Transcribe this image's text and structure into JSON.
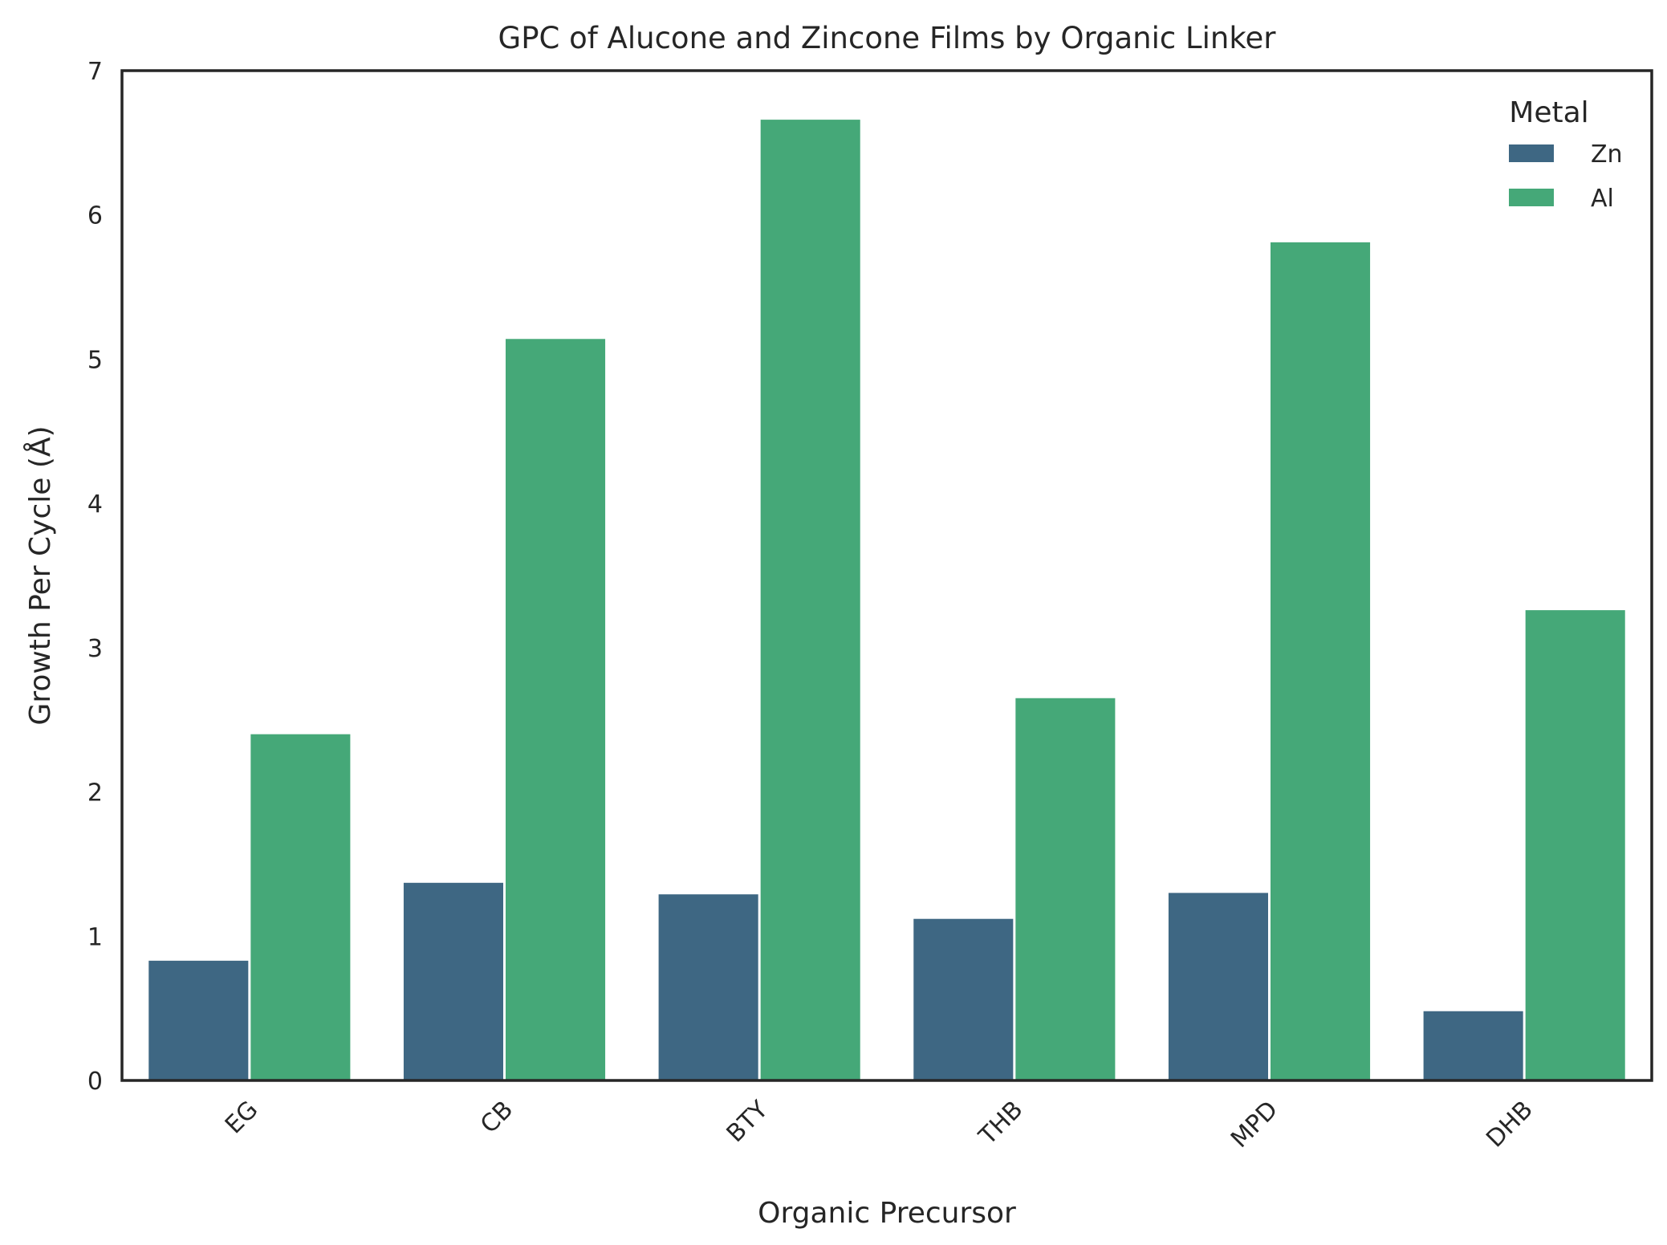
{
  "chart_data": {
    "type": "bar",
    "title": "GPC of Alucone and Zincone Films by Organic Linker",
    "xlabel": "Organic Precursor",
    "ylabel": "Growth Per Cycle (Å)",
    "categories": [
      "EG",
      "CB",
      "BTY",
      "THB",
      "MPD",
      "DHB"
    ],
    "series": [
      {
        "name": "Zn",
        "color": "#3e6783",
        "values": [
          0.83,
          1.37,
          1.29,
          1.12,
          1.3,
          0.48
        ]
      },
      {
        "name": "Al",
        "color": "#45a878",
        "values": [
          2.4,
          5.14,
          6.66,
          2.65,
          5.81,
          3.26
        ]
      }
    ],
    "ylim": [
      0,
      7
    ],
    "yticks": [
      "0",
      "1",
      "2",
      "3",
      "4",
      "5",
      "6",
      "7"
    ],
    "grid": false,
    "legend": {
      "title": "Metal",
      "position": "top-right"
    },
    "xtick_rotation": 45
  }
}
